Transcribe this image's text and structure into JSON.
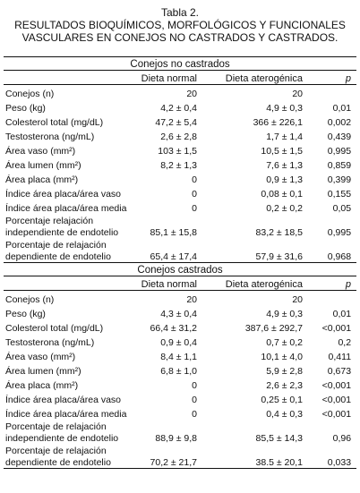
{
  "title": "Tabla 2.",
  "subtitle": [
    "RESULTADOS BIOQUÍMICOS, MORFOLÓGICOS Y FUNCIONALES",
    "VASCULARES EN CONEJOS NO CASTRADOS Y CASTRADOS."
  ],
  "sections": [
    {
      "title": "Conejos no castrados",
      "header": [
        "Dieta normal",
        "Dieta aterogénica",
        "p"
      ],
      "rows": [
        [
          "Conejos (n)",
          "20",
          "20"
        ],
        [
          "Peso (kg)",
          "4,2 ± 0,4",
          "4,9 ± 0,3",
          "0,01"
        ],
        [
          "Colesterol total (mg/dL)",
          "47,2 ± 5,4",
          "366 ± 226,1",
          "0,002"
        ],
        [
          "Testosterona (ng/mL)",
          "2,6 ± 2,8",
          "1,7 ± 1,4",
          "0,439"
        ],
        [
          "Área vaso (mm²)",
          "103 ± 1,5",
          "10,5 ± 1,5",
          "0,995"
        ],
        [
          "Área lumen (mm²)",
          "8,2 ± 1,3",
          "7,6 ± 1,3",
          "0,859"
        ],
        [
          "Área placa (mm²)",
          "0",
          "0,9 ± 1,3",
          "0,399"
        ],
        [
          "Índice área placa/área vaso",
          "0",
          "0,08 ± 0,1",
          "0,155"
        ],
        [
          "Índice área placa/área media",
          "0",
          "0,2 ± 0,2",
          "0,05"
        ],
        [
          "Porcentaje relajación\nindependiente de endotelio",
          "85,1 ± 15,8",
          "83,2 ± 18,5",
          "0,995"
        ],
        [
          "Porcentaje de relajación\ndependiente de endotelio",
          "65,4 ± 17,4",
          "57,9 ± 31,6",
          "0,968"
        ]
      ]
    },
    {
      "title": "Conejos castrados",
      "header": [
        "Dieta normal",
        "Dieta aterogénica",
        "p"
      ],
      "rows": [
        [
          "Conejos (n)",
          "20",
          "20"
        ],
        [
          "Peso (kg)",
          "4,3 ± 0,4",
          "4,9 ± 0,3",
          "0,01"
        ],
        [
          "Colesterol total (mg/dL)",
          "66,4 ± 31,2",
          "387,6 ± 292,7",
          "<0,001"
        ],
        [
          "Testosterona (ng/mL)",
          "0,9 ± 0,4",
          "0,7 ± 0,2",
          "0,2"
        ],
        [
          "Área vaso (mm²)",
          "8,4 ± 1,1",
          "10,1 ± 4,0",
          "0,411"
        ],
        [
          "Área lumen (mm²)",
          "6,8 ± 1,0",
          "5,9 ± 2,8",
          "0,673"
        ],
        [
          "Área placa (mm²)",
          "0",
          "2,6 ± 2,3",
          "<0,001"
        ],
        [
          "Índice área placa/área vaso",
          "0",
          "0,25 ± 0,1",
          "<0,001"
        ],
        [
          "Índice área placa/área media",
          "0",
          "0,4 ± 0,3",
          "<0,001"
        ],
        [
          "Porcentaje de relajación\nindependiente de endotelio",
          "88,9 ± 9,8",
          "85,5 ± 14,3",
          "0,96"
        ],
        [
          "Porcentaje de relajación\ndependiente de endotelio",
          "70,2 ± 21,7",
          "38.5 ± 20,1",
          "0,033"
        ]
      ]
    }
  ]
}
